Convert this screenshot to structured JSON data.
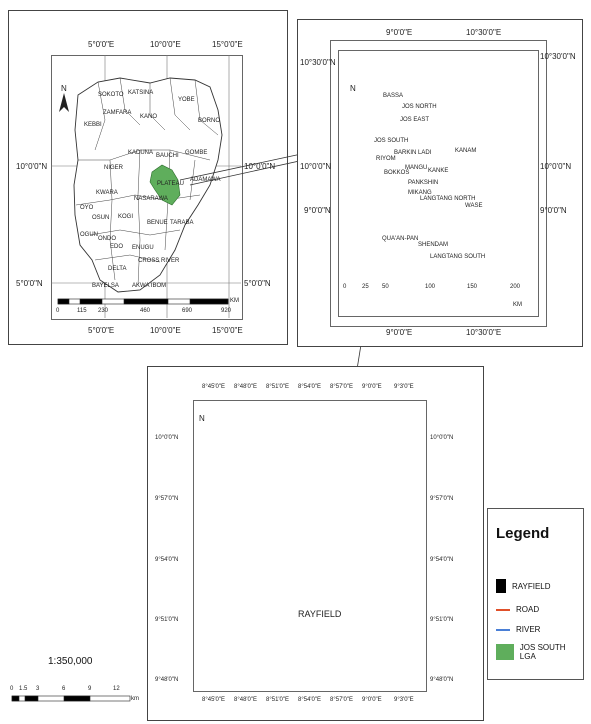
{
  "nigeria_map": {
    "top_x_labels": [
      "5°0'0\"E",
      "10°0'0\"E",
      "15°0'0\"E"
    ],
    "bottom_x_labels": [
      "5°0'0\"E",
      "10°0'0\"E",
      "15°0'0\"E"
    ],
    "left_y_labels": [
      "10°0'0\"N",
      "5°0'0\"N"
    ],
    "right_y_labels": [
      "10°0'0\"N",
      "5°0'0\"N"
    ],
    "north": "N",
    "scale_ticks": [
      "0",
      "115",
      "230",
      "460",
      "690",
      "920"
    ],
    "scale_unit": "KM",
    "state_names": [
      "SOKOTO",
      "KATSINA",
      "YOBE",
      "ZAMFARA",
      "KANO",
      "BORNO",
      "KEBBI",
      "KADUNA",
      "BAUCHI",
      "GOMBE",
      "NIGER",
      "PLATEAU",
      "ADAMAWA",
      "KWARA",
      "NASARAWA",
      "OYO",
      "OSUN",
      "KOGI",
      "BENUE",
      "TARABA",
      "OGUN",
      "ONDO",
      "EDO",
      "ENUGU",
      "CROSS RIVER",
      "DELTA",
      "BAYELSA",
      "AKWA IBOM"
    ]
  },
  "plateau_map": {
    "top_x_labels": [
      "9°0'0\"E",
      "10°30'0\"E"
    ],
    "bottom_x_labels": [
      "9°0'0\"E",
      "10°30'0\"E"
    ],
    "left_y_labels": [
      "10°30'0\"N",
      "10°0'0\"N",
      "9°0'0\"N"
    ],
    "right_y_labels": [
      "10°30'0\"N",
      "10°0'0\"N",
      "9°0'0\"N"
    ],
    "north": "N",
    "scale_ticks": [
      "0",
      "25",
      "50",
      "100",
      "150",
      "200"
    ],
    "scale_unit": "KM",
    "lga_names": [
      "BASSA",
      "JOS NORTH",
      "JOS EAST",
      "JOS SOUTH",
      "BARKIN LADI",
      "RIYOM",
      "BOKKOS",
      "MANGU",
      "KANAM",
      "KANKE",
      "PANKSHIN",
      "MIKANG",
      "QUA'AN-PAN",
      "SHENDAM",
      "LANGTANG NORTH",
      "LANGTANG SOUTH",
      "WASE"
    ]
  },
  "jos_south_map": {
    "top_x_labels": [
      "8°45'0\"E",
      "8°48'0\"E",
      "8°51'0\"E",
      "8°54'0\"E",
      "8°57'0\"E",
      "9°0'0\"E",
      "9°3'0\"E"
    ],
    "bottom_x_labels": [
      "8°45'0\"E",
      "8°48'0\"E",
      "8°51'0\"E",
      "8°54'0\"E",
      "8°57'0\"E",
      "9°0'0\"E",
      "9°3'0\"E"
    ],
    "left_y_labels": [
      "10°0'0\"N",
      "9°57'0\"N",
      "9°54'0\"N",
      "9°51'0\"N",
      "9°48'0\"N"
    ],
    "right_y_labels": [
      "10°0'0\"N",
      "9°57'0\"N",
      "9°54'0\"N",
      "9°51'0\"N",
      "9°48'0\"N"
    ],
    "north": "N",
    "place_label": "RAYFIELD"
  },
  "scale": {
    "ratio": "1:350,000",
    "ticks": [
      "0",
      "1.5",
      "3",
      "6",
      "9",
      "12"
    ],
    "unit": "km"
  },
  "legend": {
    "title": "Legend",
    "items": [
      {
        "label": "RAYFIELD",
        "color": "#000000",
        "kind": "square"
      },
      {
        "label": "ROAD",
        "color": "#e0502a",
        "kind": "line"
      },
      {
        "label": "RIVER",
        "color": "#4a7fd6",
        "kind": "line"
      },
      {
        "label": "JOS SOUTH LGA",
        "color": "#5fae5c",
        "kind": "fill"
      }
    ]
  }
}
